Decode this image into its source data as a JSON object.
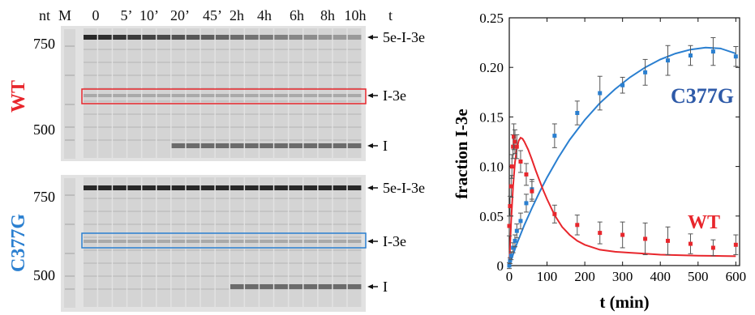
{
  "gel_figure": {
    "header": {
      "nt_label": "nt",
      "marker_label": "M",
      "lane_labels": [
        "0",
        "5’",
        "10’",
        "20’",
        "45’",
        "2h",
        "4h",
        "6h",
        "8h",
        "10h"
      ],
      "t_label": "t"
    },
    "panels": [
      {
        "id": "wt",
        "name": "WT",
        "color": "#e8262c",
        "box_color": "#e8262c",
        "marker_sizes": [
          "750",
          "500"
        ],
        "band_labels": [
          "5e-I-3e",
          "I-3e",
          "I"
        ]
      },
      {
        "id": "c377g",
        "name": "C377G",
        "color": "#2a7fd0",
        "box_color": "#2a7fd0",
        "marker_sizes": [
          "750",
          "500"
        ],
        "band_labels": [
          "5e-I-3e",
          "I-3e",
          "I"
        ]
      }
    ]
  },
  "chart_data": {
    "type": "scatter",
    "title": "",
    "xlabel": "t (min)",
    "ylabel": "fraction I-3e",
    "xlim": [
      0,
      610
    ],
    "ylim": [
      0,
      0.25
    ],
    "x_ticks": [
      "0",
      "100",
      "200",
      "300",
      "400",
      "500",
      "600"
    ],
    "y_ticks": [
      "0",
      "0.05",
      "0.10",
      "0.15",
      "0.20",
      "0.25"
    ],
    "grid": false,
    "legend": "none",
    "series": [
      {
        "name": "C377G",
        "color": "#2a7fd0",
        "x": [
          0,
          2,
          5,
          10,
          15,
          20,
          30,
          45,
          60,
          120,
          180,
          240,
          300,
          360,
          420,
          480,
          540,
          600
        ],
        "y": [
          0.0,
          0.005,
          0.01,
          0.018,
          0.025,
          0.035,
          0.045,
          0.063,
          0.077,
          0.131,
          0.154,
          0.174,
          0.182,
          0.195,
          0.207,
          0.212,
          0.216,
          0.211
        ],
        "err": [
          0.003,
          0.003,
          0.004,
          0.005,
          0.006,
          0.007,
          0.008,
          0.009,
          0.01,
          0.012,
          0.012,
          0.017,
          0.008,
          0.013,
          0.015,
          0.01,
          0.014,
          0.01
        ],
        "fit_x": [
          0,
          20,
          40,
          60,
          80,
          100,
          130,
          160,
          200,
          240,
          280,
          320,
          360,
          400,
          440,
          480,
          520,
          560,
          600
        ],
        "fit_y": [
          0.0,
          0.022,
          0.041,
          0.058,
          0.074,
          0.089,
          0.109,
          0.127,
          0.147,
          0.164,
          0.178,
          0.19,
          0.2,
          0.208,
          0.214,
          0.218,
          0.22,
          0.219,
          0.214
        ]
      },
      {
        "name": "WT",
        "color": "#e8262c",
        "x": [
          0,
          2,
          5,
          7,
          10,
          12,
          15,
          20,
          30,
          45,
          60,
          120,
          180,
          240,
          300,
          360,
          420,
          480,
          540,
          600
        ],
        "y": [
          0.04,
          0.06,
          0.08,
          0.1,
          0.12,
          0.13,
          0.125,
          0.12,
          0.105,
          0.092,
          0.075,
          0.052,
          0.041,
          0.033,
          0.031,
          0.027,
          0.025,
          0.022,
          0.018,
          0.021
        ],
        "err": [
          0.01,
          0.01,
          0.011,
          0.012,
          0.012,
          0.013,
          0.012,
          0.012,
          0.011,
          0.011,
          0.01,
          0.009,
          0.01,
          0.011,
          0.013,
          0.016,
          0.014,
          0.01,
          0.008,
          0.01
        ],
        "fit_x": [
          0,
          5,
          10,
          15,
          20,
          25,
          30,
          35,
          40,
          50,
          60,
          70,
          80,
          90,
          100,
          120,
          140,
          160,
          180,
          200,
          240,
          280,
          320,
          360,
          400,
          450,
          500,
          550,
          600
        ],
        "fit_y": [
          0.0,
          0.045,
          0.08,
          0.104,
          0.118,
          0.126,
          0.129,
          0.128,
          0.125,
          0.117,
          0.107,
          0.096,
          0.086,
          0.076,
          0.067,
          0.051,
          0.039,
          0.031,
          0.025,
          0.021,
          0.016,
          0.014,
          0.013,
          0.012,
          0.011,
          0.0105,
          0.01,
          0.0098,
          0.0095
        ]
      }
    ],
    "annotations": [
      {
        "text": "C377G",
        "color": "#2e5aa8"
      },
      {
        "text": "WT",
        "color": "#e8262c"
      }
    ]
  }
}
